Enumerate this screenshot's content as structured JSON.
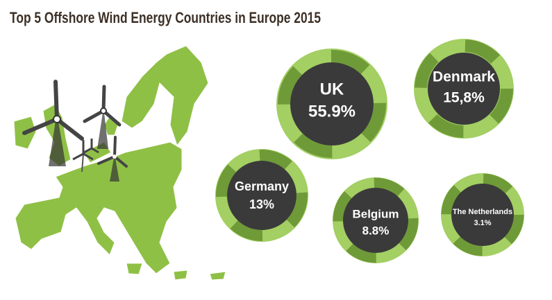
{
  "title": "Top 5 Offshore Wind Energy Countries in Europe 2015",
  "countries": [
    {
      "name": "UK",
      "share": "55.9%"
    },
    {
      "name": "Denmark",
      "share": "15,8%"
    },
    {
      "name": "Germany",
      "share": "13%"
    },
    {
      "name": "Belgium",
      "share": "8.8%"
    },
    {
      "name": "The Netherlands",
      "share": "3.1%"
    }
  ]
}
